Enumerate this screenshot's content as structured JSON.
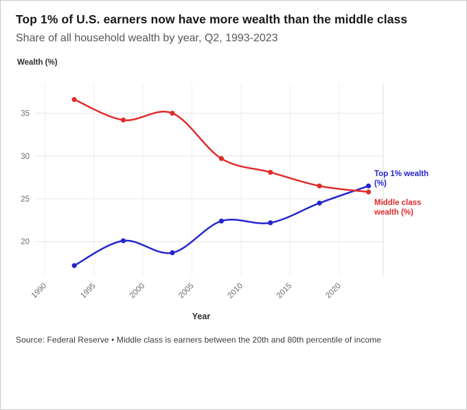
{
  "header": {
    "title": "Top 1% of U.S. earners now have more wealth than the middle class",
    "subtitle": "Share of all household wealth by year, Q2, 1993-2023"
  },
  "chart_data": {
    "type": "line",
    "title": "Top 1% of U.S. earners now have more wealth than the middle class",
    "subtitle": "Share of all household wealth by year, Q2, 1993-2023",
    "xlabel": "Year",
    "ylabel": "Wealth (%)",
    "x": [
      1993,
      1998,
      2003,
      2008,
      2013,
      2018,
      2023
    ],
    "series": [
      {
        "name": "Top 1% wealth (%)",
        "color": "#2525cd",
        "values": [
          17.2,
          20.1,
          18.7,
          22.4,
          22.2,
          24.5,
          26.5
        ]
      },
      {
        "name": "Middle class wealth (%)",
        "color": "#e02b2b",
        "values": [
          36.6,
          34.2,
          35.0,
          29.7,
          28.1,
          26.5,
          25.8
        ]
      }
    ],
    "xticks": [
      1990,
      1995,
      2000,
      2005,
      2010,
      2015,
      2020
    ],
    "yticks": [
      20,
      25,
      30,
      35
    ],
    "xlim": [
      1989,
      2024.5
    ],
    "ylim": [
      16,
      38.5
    ],
    "grid": true,
    "legend_position": "right"
  },
  "colors": {
    "top1": "#2525cd",
    "middle": "#e02b2b",
    "grid_h": "#e4e4e4",
    "grid_v": "#efefef",
    "spine": "#dcdcdc",
    "tick_text": "#6b6b6b"
  },
  "footer": {
    "source": "Source: Federal Reserve • Middle class is earners between the 20th and 80th percentile of income"
  }
}
